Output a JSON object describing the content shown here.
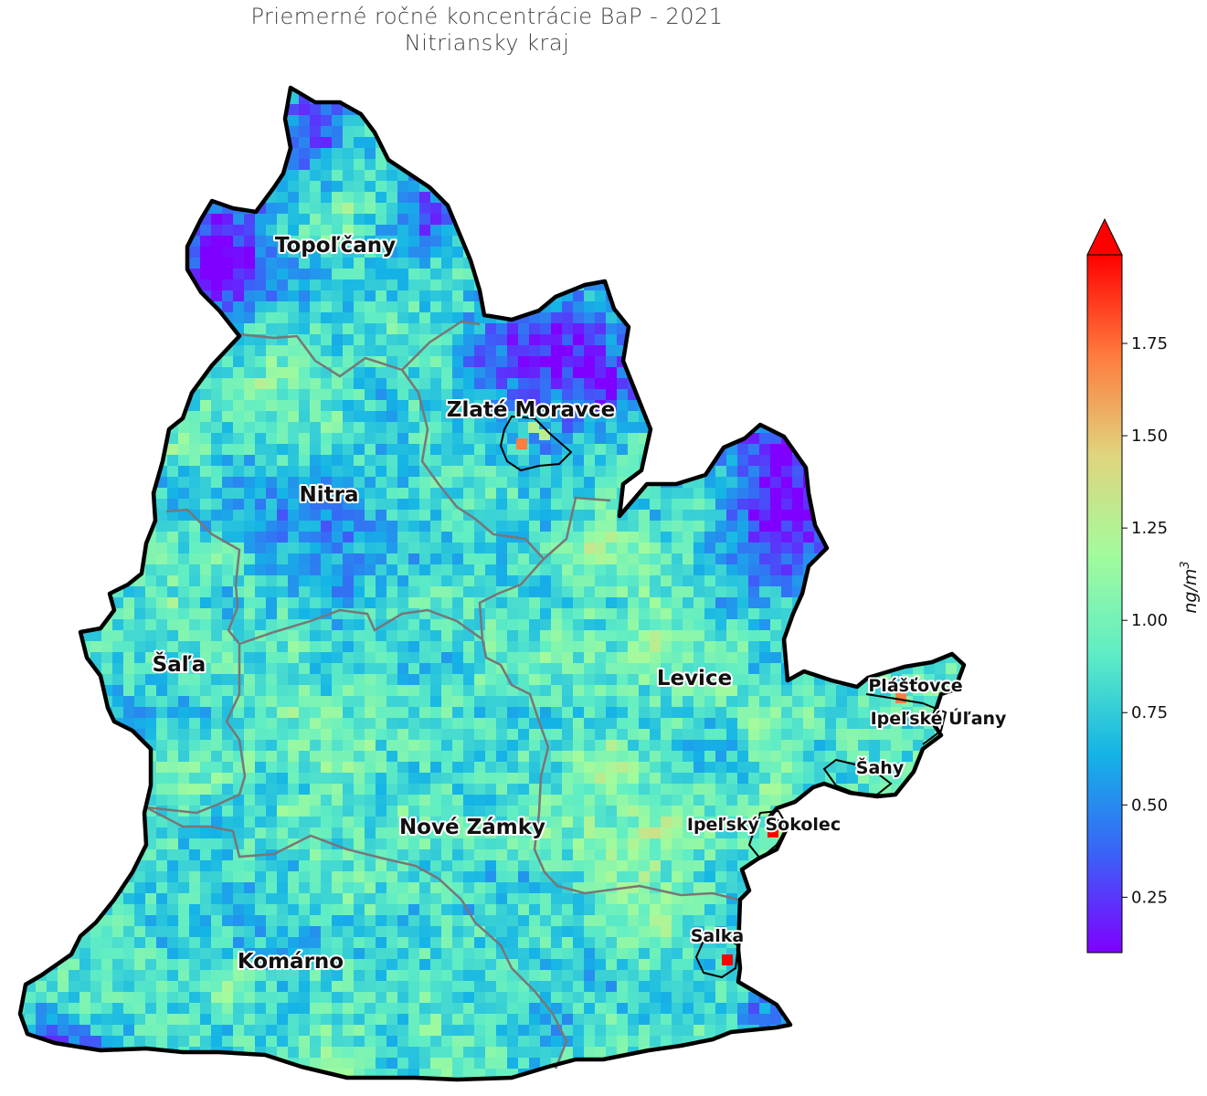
{
  "title": {
    "line1": "Priemerné ročné koncentrácie BaP - 2021",
    "line2": "Nitriansky kraj"
  },
  "colorbar": {
    "unit": "ng/m",
    "unit_superscript": "3",
    "ticks": [
      "0.25",
      "0.50",
      "0.75",
      "1.00",
      "1.25",
      "1.50",
      "1.75"
    ],
    "tick_values": [
      0.25,
      0.5,
      0.75,
      1.0,
      1.25,
      1.5,
      1.75
    ],
    "range": [
      0.1,
      1.99
    ],
    "extend": "max",
    "colormap": "rainbow",
    "colors": [
      "#7f00ff",
      "#3a63f7",
      "#14b4e6",
      "#5fedc5",
      "#a3fb9c",
      "#e0d47d",
      "#ff7a3d",
      "#ff0000"
    ]
  },
  "map": {
    "region": "Nitriansky kraj",
    "district_labels": [
      {
        "id": "topolcany",
        "text": "Topoľčany"
      },
      {
        "id": "zlate-moravce",
        "text": "Zlaté Moravce"
      },
      {
        "id": "nitra",
        "text": "Nitra"
      },
      {
        "id": "sala",
        "text": "Šaľa"
      },
      {
        "id": "levice",
        "text": "Levice"
      },
      {
        "id": "nove-zamky",
        "text": "Nové Zámky"
      },
      {
        "id": "komarno",
        "text": "Komárno"
      }
    ],
    "town_labels": [
      {
        "id": "plastovce",
        "text": "Plášťovce"
      },
      {
        "id": "ipelske-ulany",
        "text": "Ipeľské Úľany"
      },
      {
        "id": "sahy",
        "text": "Šahy"
      },
      {
        "id": "ipelsky-sokolec",
        "text": "Ipeľský Sokolec"
      },
      {
        "id": "salka",
        "text": "Salka"
      }
    ],
    "hotspots": [
      {
        "near": "Ipeľský Sokolec",
        "level": "max"
      },
      {
        "near": "Salka",
        "level": "max"
      },
      {
        "near": "Plášťovce",
        "level": "high"
      },
      {
        "near": "Zlaté Moravce",
        "level": "high"
      }
    ]
  }
}
